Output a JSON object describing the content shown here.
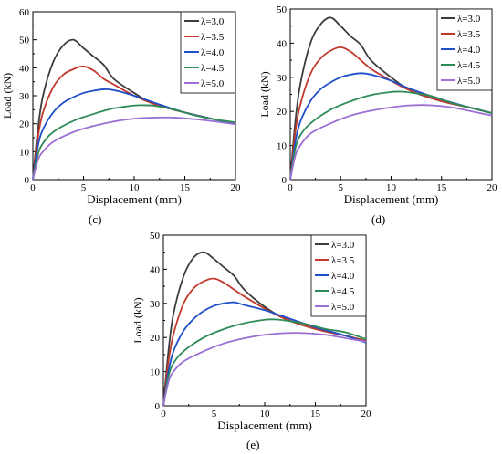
{
  "panel_labels": [
    "(c)",
    "(d)",
    "(e)"
  ],
  "colors": {
    "λ=3.0": "#3d3d3d",
    "λ=3.5": "#c0392b",
    "λ=4.0": "#1f4fc8",
    "λ=4.5": "#2e8b57",
    "λ=5.0": "#9b6fd4"
  },
  "chart_data": [
    {
      "id": "c",
      "type": "line",
      "xlabel": "Displacement (mm)",
      "ylabel": "Load (kN)",
      "xlim": [
        0,
        20
      ],
      "ylim": [
        0,
        60
      ],
      "xticks": [
        0,
        5,
        10,
        15,
        20
      ],
      "yticks": [
        0,
        10,
        20,
        30,
        40,
        50,
        60
      ],
      "grid": false,
      "legend": "top-right",
      "series": [
        {
          "name": "λ=3.0",
          "x": [
            0,
            0.5,
            1,
            2,
            3,
            4,
            5,
            6,
            7,
            8,
            10,
            12,
            15,
            18,
            20
          ],
          "y": [
            0,
            18,
            30,
            42,
            48,
            50,
            47,
            44,
            41,
            36,
            31,
            27,
            24,
            21.5,
            20
          ]
        },
        {
          "name": "λ=3.5",
          "x": [
            0,
            0.5,
            1,
            2,
            3,
            4,
            5,
            6,
            7,
            8,
            10,
            12,
            15,
            18,
            20
          ],
          "y": [
            0,
            15,
            24,
            33,
            37.5,
            39.5,
            40.5,
            39,
            36,
            34,
            30,
            27,
            24,
            21.5,
            20
          ]
        },
        {
          "name": "λ=4.0",
          "x": [
            0,
            0.5,
            1,
            2,
            3,
            4,
            5,
            6,
            7,
            8,
            10,
            12,
            15,
            18,
            20
          ],
          "y": [
            0,
            12,
            18,
            24,
            27.5,
            29.5,
            31,
            31.8,
            32.3,
            32,
            30,
            27.5,
            24,
            21.5,
            20
          ]
        },
        {
          "name": "λ=4.5",
          "x": [
            0,
            0.5,
            1,
            2,
            4,
            6,
            8,
            10,
            11,
            12,
            14,
            16,
            18,
            20
          ],
          "y": [
            0,
            9,
            13,
            17,
            21,
            23.5,
            25.5,
            26.5,
            26.6,
            26.4,
            25,
            23,
            21.5,
            20.5
          ]
        },
        {
          "name": "λ=5.0",
          "x": [
            0,
            0.5,
            1,
            2,
            4,
            6,
            8,
            10,
            12,
            14,
            16,
            18,
            20
          ],
          "y": [
            0,
            7,
            10,
            13.5,
            17,
            19.2,
            20.8,
            21.8,
            22.2,
            22.2,
            21.6,
            20.8,
            19.8
          ]
        }
      ]
    },
    {
      "id": "d",
      "type": "line",
      "xlabel": "Displacement (mm)",
      "ylabel": "Load (kN)",
      "xlim": [
        0,
        20
      ],
      "ylim": [
        0,
        50
      ],
      "xticks": [
        0,
        5,
        10,
        15,
        20
      ],
      "yticks": [
        0,
        10,
        20,
        30,
        40,
        50
      ],
      "grid": false,
      "legend": "top-right",
      "series": [
        {
          "name": "λ=3.0",
          "x": [
            0,
            0.5,
            1,
            2,
            3,
            4,
            5,
            6,
            7,
            8,
            10,
            12,
            15,
            18,
            20
          ],
          "y": [
            0,
            17,
            28,
            40,
            45.5,
            47.5,
            45,
            42,
            39.5,
            35,
            30,
            26,
            23,
            21,
            19.5
          ]
        },
        {
          "name": "λ=3.5",
          "x": [
            0,
            0.5,
            1,
            2,
            3,
            4,
            5,
            6,
            7,
            8,
            10,
            12,
            15,
            18,
            20
          ],
          "y": [
            0,
            14,
            22,
            31,
            35.5,
            37.8,
            38.8,
            37.5,
            35,
            32.5,
            29,
            26,
            23,
            21,
            19.5
          ]
        },
        {
          "name": "λ=4.0",
          "x": [
            0,
            0.5,
            1,
            2,
            3,
            4,
            5,
            6,
            7,
            8,
            10,
            12,
            15,
            18,
            20
          ],
          "y": [
            0,
            11,
            17,
            23,
            26.5,
            28.5,
            30,
            30.8,
            31.2,
            30.8,
            29,
            26.5,
            23.5,
            21,
            19.5
          ]
        },
        {
          "name": "λ=4.5",
          "x": [
            0,
            0.5,
            1,
            2,
            4,
            6,
            8,
            10,
            11,
            12,
            14,
            16,
            18,
            20
          ],
          "y": [
            0,
            9,
            13,
            16.5,
            20.5,
            23,
            24.8,
            25.7,
            25.8,
            25.5,
            24.5,
            22.5,
            21,
            19.5
          ]
        },
        {
          "name": "λ=5.0",
          "x": [
            0,
            0.5,
            1,
            2,
            4,
            6,
            8,
            10,
            12,
            14,
            16,
            18,
            20
          ],
          "y": [
            0,
            7,
            10,
            13.5,
            16.5,
            18.8,
            20.2,
            21.2,
            21.8,
            21.8,
            21.2,
            20,
            18.8
          ]
        }
      ]
    },
    {
      "id": "e",
      "type": "line",
      "xlabel": "Displacement (mm)",
      "ylabel": "Load (kN)",
      "xlim": [
        0,
        20
      ],
      "ylim": [
        0,
        50
      ],
      "xticks": [
        0,
        5,
        10,
        15,
        20
      ],
      "yticks": [
        0,
        10,
        20,
        30,
        40,
        50
      ],
      "grid": false,
      "legend": "top-right",
      "series": [
        {
          "name": "λ=3.0",
          "x": [
            0,
            0.5,
            1,
            2,
            3,
            4,
            5,
            6,
            7,
            8,
            10,
            12,
            15,
            18,
            20
          ],
          "y": [
            0,
            16,
            27,
            38,
            43.5,
            45,
            43,
            40.5,
            38,
            34,
            29,
            25.5,
            22.5,
            20.5,
            19
          ]
        },
        {
          "name": "λ=3.5",
          "x": [
            0,
            0.5,
            1,
            2,
            3,
            4,
            5,
            6,
            7,
            8,
            10,
            12,
            15,
            18,
            20
          ],
          "y": [
            0,
            13,
            21,
            30,
            34.5,
            36.5,
            37.3,
            36,
            34,
            32,
            28.5,
            25.5,
            22.5,
            20.5,
            19
          ]
        },
        {
          "name": "λ=4.0",
          "x": [
            0,
            0.5,
            1,
            2,
            3,
            4,
            5,
            6,
            7,
            8,
            10,
            12,
            15,
            18,
            20
          ],
          "y": [
            0,
            10,
            16,
            22,
            25.5,
            27.8,
            29.3,
            30,
            30.3,
            29.5,
            28,
            26,
            23,
            20.5,
            18.5
          ]
        },
        {
          "name": "λ=4.5",
          "x": [
            0,
            0.5,
            1,
            2,
            4,
            6,
            8,
            10,
            11,
            12,
            14,
            16,
            18,
            20
          ],
          "y": [
            0,
            8.5,
            12.5,
            16,
            20,
            22.5,
            24.2,
            25.2,
            25.3,
            25,
            24,
            22.5,
            21.5,
            19.5
          ]
        },
        {
          "name": "λ=5.0",
          "x": [
            0,
            0.5,
            1,
            2,
            4,
            6,
            8,
            10,
            12,
            14,
            16,
            18,
            20
          ],
          "y": [
            0,
            7,
            10,
            13,
            16,
            18.3,
            19.8,
            20.8,
            21.3,
            21.3,
            20.8,
            19.8,
            18.8
          ]
        }
      ]
    }
  ]
}
